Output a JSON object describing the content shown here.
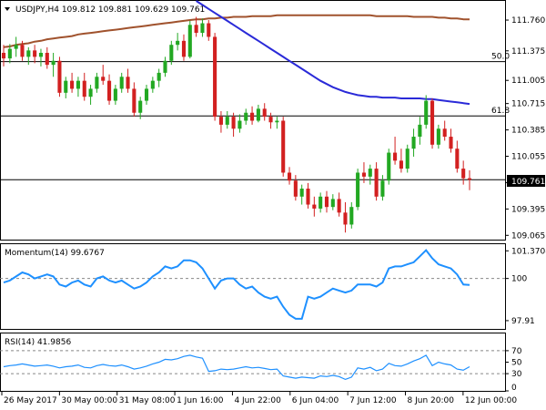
{
  "colors": {
    "bull": "#22a822",
    "bear": "#d22020",
    "ma_slow": "#a0522d",
    "ma_fast": "#2a2ad8",
    "indicator": "#1e90ff",
    "level": "#000000"
  },
  "chart_data": [
    {
      "type": "candlestick",
      "title": "USDJPY,H4  109.812 109.881 109.629 109.761",
      "ylim": [
        109.0,
        112.0
      ],
      "y_ticks": [
        "111.760",
        "111.375",
        "111.005",
        "110.715",
        "110.385",
        "110.055",
        "109.725",
        "109.395",
        "109.065"
      ],
      "current_price": "109.761",
      "levels": [
        {
          "label": "50.0",
          "value": 111.24
        },
        {
          "label": "61.8",
          "value": 110.56
        },
        {
          "label": "",
          "value": 109.761
        }
      ],
      "candles": [
        [
          111.35,
          111.45,
          111.18,
          111.28
        ],
        [
          111.28,
          111.46,
          111.22,
          111.4
        ],
        [
          111.4,
          111.55,
          111.3,
          111.45
        ],
        [
          111.45,
          111.5,
          111.25,
          111.3
        ],
        [
          111.3,
          111.42,
          111.2,
          111.38
        ],
        [
          111.38,
          111.45,
          111.22,
          111.3
        ],
        [
          111.3,
          111.4,
          111.18,
          111.35
        ],
        [
          111.35,
          111.42,
          111.15,
          111.2
        ],
        [
          111.2,
          111.35,
          111.05,
          111.25
        ],
        [
          111.25,
          111.3,
          110.8,
          110.85
        ],
        [
          110.85,
          111.05,
          110.78,
          111.0
        ],
        [
          111.0,
          111.1,
          110.85,
          110.9
        ],
        [
          110.9,
          111.05,
          110.8,
          111.0
        ],
        [
          111.0,
          111.1,
          110.75,
          110.8
        ],
        [
          110.8,
          110.95,
          110.7,
          110.9
        ],
        [
          110.9,
          111.1,
          110.85,
          111.05
        ],
        [
          111.05,
          111.2,
          110.95,
          111.0
        ],
        [
          111.0,
          111.08,
          110.7,
          110.75
        ],
        [
          110.75,
          110.95,
          110.7,
          110.9
        ],
        [
          110.9,
          111.1,
          110.85,
          111.05
        ],
        [
          111.05,
          111.15,
          110.85,
          110.9
        ],
        [
          110.9,
          110.98,
          110.55,
          110.6
        ],
        [
          110.6,
          110.8,
          110.52,
          110.75
        ],
        [
          110.75,
          110.95,
          110.7,
          110.9
        ],
        [
          110.9,
          111.05,
          110.85,
          111.0
        ],
        [
          111.0,
          111.15,
          110.92,
          111.1
        ],
        [
          111.1,
          111.3,
          111.05,
          111.25
        ],
        [
          111.25,
          111.5,
          111.2,
          111.45
        ],
        [
          111.45,
          111.6,
          111.38,
          111.5
        ],
        [
          111.5,
          111.58,
          111.25,
          111.3
        ],
        [
          111.3,
          111.75,
          111.28,
          111.7
        ],
        [
          111.7,
          111.8,
          111.55,
          111.6
        ],
        [
          111.6,
          111.78,
          111.55,
          111.72
        ],
        [
          111.72,
          111.76,
          111.5,
          111.55
        ],
        [
          111.55,
          111.6,
          110.5,
          110.55
        ],
        [
          110.55,
          110.62,
          110.35,
          110.45
        ],
        [
          110.45,
          110.62,
          110.4,
          110.55
        ],
        [
          110.55,
          110.6,
          110.3,
          110.4
        ],
        [
          110.4,
          110.58,
          110.35,
          110.5
        ],
        [
          110.5,
          110.65,
          110.45,
          110.6
        ],
        [
          110.6,
          110.68,
          110.45,
          110.5
        ],
        [
          110.5,
          110.7,
          110.48,
          110.65
        ],
        [
          110.65,
          110.72,
          110.5,
          110.55
        ],
        [
          110.55,
          110.6,
          110.4,
          110.48
        ],
        [
          110.48,
          110.55,
          110.4,
          110.5
        ],
        [
          110.5,
          110.55,
          109.8,
          109.85
        ],
        [
          109.85,
          109.92,
          109.7,
          109.75
        ],
        [
          109.75,
          109.82,
          109.5,
          109.55
        ],
        [
          109.55,
          109.7,
          109.45,
          109.65
        ],
        [
          109.65,
          109.72,
          109.4,
          109.45
        ],
        [
          109.45,
          109.55,
          109.3,
          109.4
        ],
        [
          109.4,
          109.6,
          109.35,
          109.55
        ],
        [
          109.55,
          109.62,
          109.35,
          109.42
        ],
        [
          109.42,
          109.58,
          109.38,
          109.52
        ],
        [
          109.52,
          109.6,
          109.3,
          109.35
        ],
        [
          109.35,
          109.48,
          109.1,
          109.2
        ],
        [
          109.2,
          109.48,
          109.15,
          109.42
        ],
        [
          109.42,
          109.9,
          109.38,
          109.85
        ],
        [
          109.85,
          109.98,
          109.72,
          109.8
        ],
        [
          109.8,
          109.95,
          109.7,
          109.9
        ],
        [
          109.9,
          109.98,
          109.5,
          109.55
        ],
        [
          109.55,
          109.82,
          109.5,
          109.75
        ],
        [
          109.75,
          110.15,
          109.7,
          110.1
        ],
        [
          110.1,
          110.3,
          109.95,
          110.0
        ],
        [
          110.0,
          110.15,
          109.85,
          109.9
        ],
        [
          109.9,
          110.2,
          109.85,
          110.15
        ],
        [
          110.15,
          110.4,
          110.05,
          110.3
        ],
        [
          110.3,
          110.55,
          110.2,
          110.45
        ],
        [
          110.45,
          110.82,
          110.4,
          110.75
        ],
        [
          110.75,
          110.78,
          110.15,
          110.2
        ],
        [
          110.2,
          110.45,
          110.15,
          110.4
        ],
        [
          110.4,
          110.5,
          110.25,
          110.3
        ],
        [
          110.3,
          110.4,
          110.1,
          110.15
        ],
        [
          110.15,
          110.25,
          109.85,
          109.9
        ],
        [
          109.9,
          110.0,
          109.7,
          109.78
        ],
        [
          109.78,
          109.88,
          109.63,
          109.76
        ]
      ],
      "ma_slow": [
        111.42,
        111.43,
        111.45,
        111.46,
        111.47,
        111.49,
        111.5,
        111.52,
        111.53,
        111.54,
        111.55,
        111.56,
        111.58,
        111.59,
        111.6,
        111.61,
        111.62,
        111.63,
        111.64,
        111.65,
        111.66,
        111.67,
        111.68,
        111.69,
        111.7,
        111.71,
        111.72,
        111.73,
        111.74,
        111.75,
        111.76,
        111.77,
        111.77,
        111.78,
        111.78,
        111.79,
        111.79,
        111.8,
        111.8,
        111.8,
        111.81,
        111.81,
        111.81,
        111.81,
        111.82,
        111.82,
        111.82,
        111.82,
        111.82,
        111.82,
        111.82,
        111.82,
        111.82,
        111.82,
        111.82,
        111.82,
        111.82,
        111.82,
        111.82,
        111.82,
        111.81,
        111.81,
        111.81,
        111.81,
        111.81,
        111.81,
        111.8,
        111.8,
        111.8,
        111.8,
        111.79,
        111.79,
        111.78,
        111.78,
        111.77,
        111.77
      ],
      "ma_fast": [
        null,
        null,
        null,
        null,
        null,
        null,
        null,
        null,
        null,
        null,
        null,
        null,
        null,
        null,
        null,
        null,
        null,
        null,
        null,
        null,
        null,
        null,
        null,
        null,
        null,
        null,
        null,
        null,
        null,
        null,
        null,
        112.0,
        111.95,
        111.9,
        111.85,
        111.8,
        111.75,
        111.7,
        111.65,
        111.6,
        111.55,
        111.5,
        111.45,
        111.4,
        111.35,
        111.3,
        111.25,
        111.2,
        111.15,
        111.1,
        111.05,
        111.0,
        110.96,
        110.92,
        110.89,
        110.86,
        110.84,
        110.82,
        110.81,
        110.8,
        110.8,
        110.79,
        110.79,
        110.79,
        110.78,
        110.78,
        110.78,
        110.78,
        110.77,
        110.77,
        110.76,
        110.75,
        110.74,
        110.73,
        110.72,
        110.71
      ]
    },
    {
      "type": "line",
      "title": "Momentum(14) 99.6767",
      "ylim": [
        97.5,
        101.7
      ],
      "y_ticks": [
        "101.3708",
        "100",
        "97.91"
      ],
      "reference_level": 100,
      "values": [
        99.8,
        99.9,
        100.1,
        100.3,
        100.2,
        100.0,
        100.1,
        100.2,
        100.1,
        99.7,
        99.6,
        99.8,
        99.9,
        99.7,
        99.6,
        100.0,
        100.1,
        99.9,
        99.8,
        99.9,
        99.7,
        99.5,
        99.6,
        99.8,
        100.1,
        100.3,
        100.6,
        100.5,
        100.6,
        100.9,
        100.9,
        100.8,
        100.5,
        100.0,
        99.5,
        99.9,
        100.0,
        100.0,
        99.7,
        99.5,
        99.6,
        99.3,
        99.1,
        99.0,
        99.1,
        98.6,
        98.2,
        98.0,
        98.0,
        99.1,
        99.0,
        99.1,
        99.3,
        99.5,
        99.4,
        99.3,
        99.4,
        99.7,
        99.7,
        99.7,
        99.6,
        99.8,
        100.5,
        100.6,
        100.6,
        100.7,
        100.8,
        101.1,
        101.4,
        101.0,
        100.7,
        100.6,
        100.5,
        100.2,
        99.7,
        99.68
      ]
    },
    {
      "type": "line",
      "title": "RSI(14) 41.9856",
      "ylim": [
        0,
        100
      ],
      "y_ticks": [
        "70",
        "50",
        "30",
        "0"
      ],
      "reference_levels": [
        70,
        30
      ],
      "values": [
        42,
        44,
        45,
        47,
        45,
        43,
        44,
        45,
        43,
        40,
        42,
        43,
        45,
        41,
        40,
        44,
        46,
        44,
        43,
        45,
        42,
        38,
        40,
        43,
        47,
        50,
        55,
        54,
        56,
        60,
        62,
        59,
        57,
        34,
        35,
        38,
        37,
        38,
        40,
        42,
        40,
        41,
        39,
        37,
        38,
        26,
        24,
        22,
        24,
        23,
        22,
        26,
        25,
        27,
        25,
        20,
        24,
        40,
        38,
        41,
        35,
        38,
        48,
        44,
        43,
        47,
        52,
        56,
        62,
        44,
        50,
        47,
        45,
        38,
        36,
        42
      ],
      "x_ticks": [
        "26 May 2017",
        "30 May 00:00",
        "31 May 08:00",
        "1 Jun 16:00",
        "4 Jun 22:00",
        "6 Jun 04:00",
        "7 Jun 12:00",
        "8 Jun 20:00",
        "12 Jun 00:00"
      ]
    }
  ]
}
